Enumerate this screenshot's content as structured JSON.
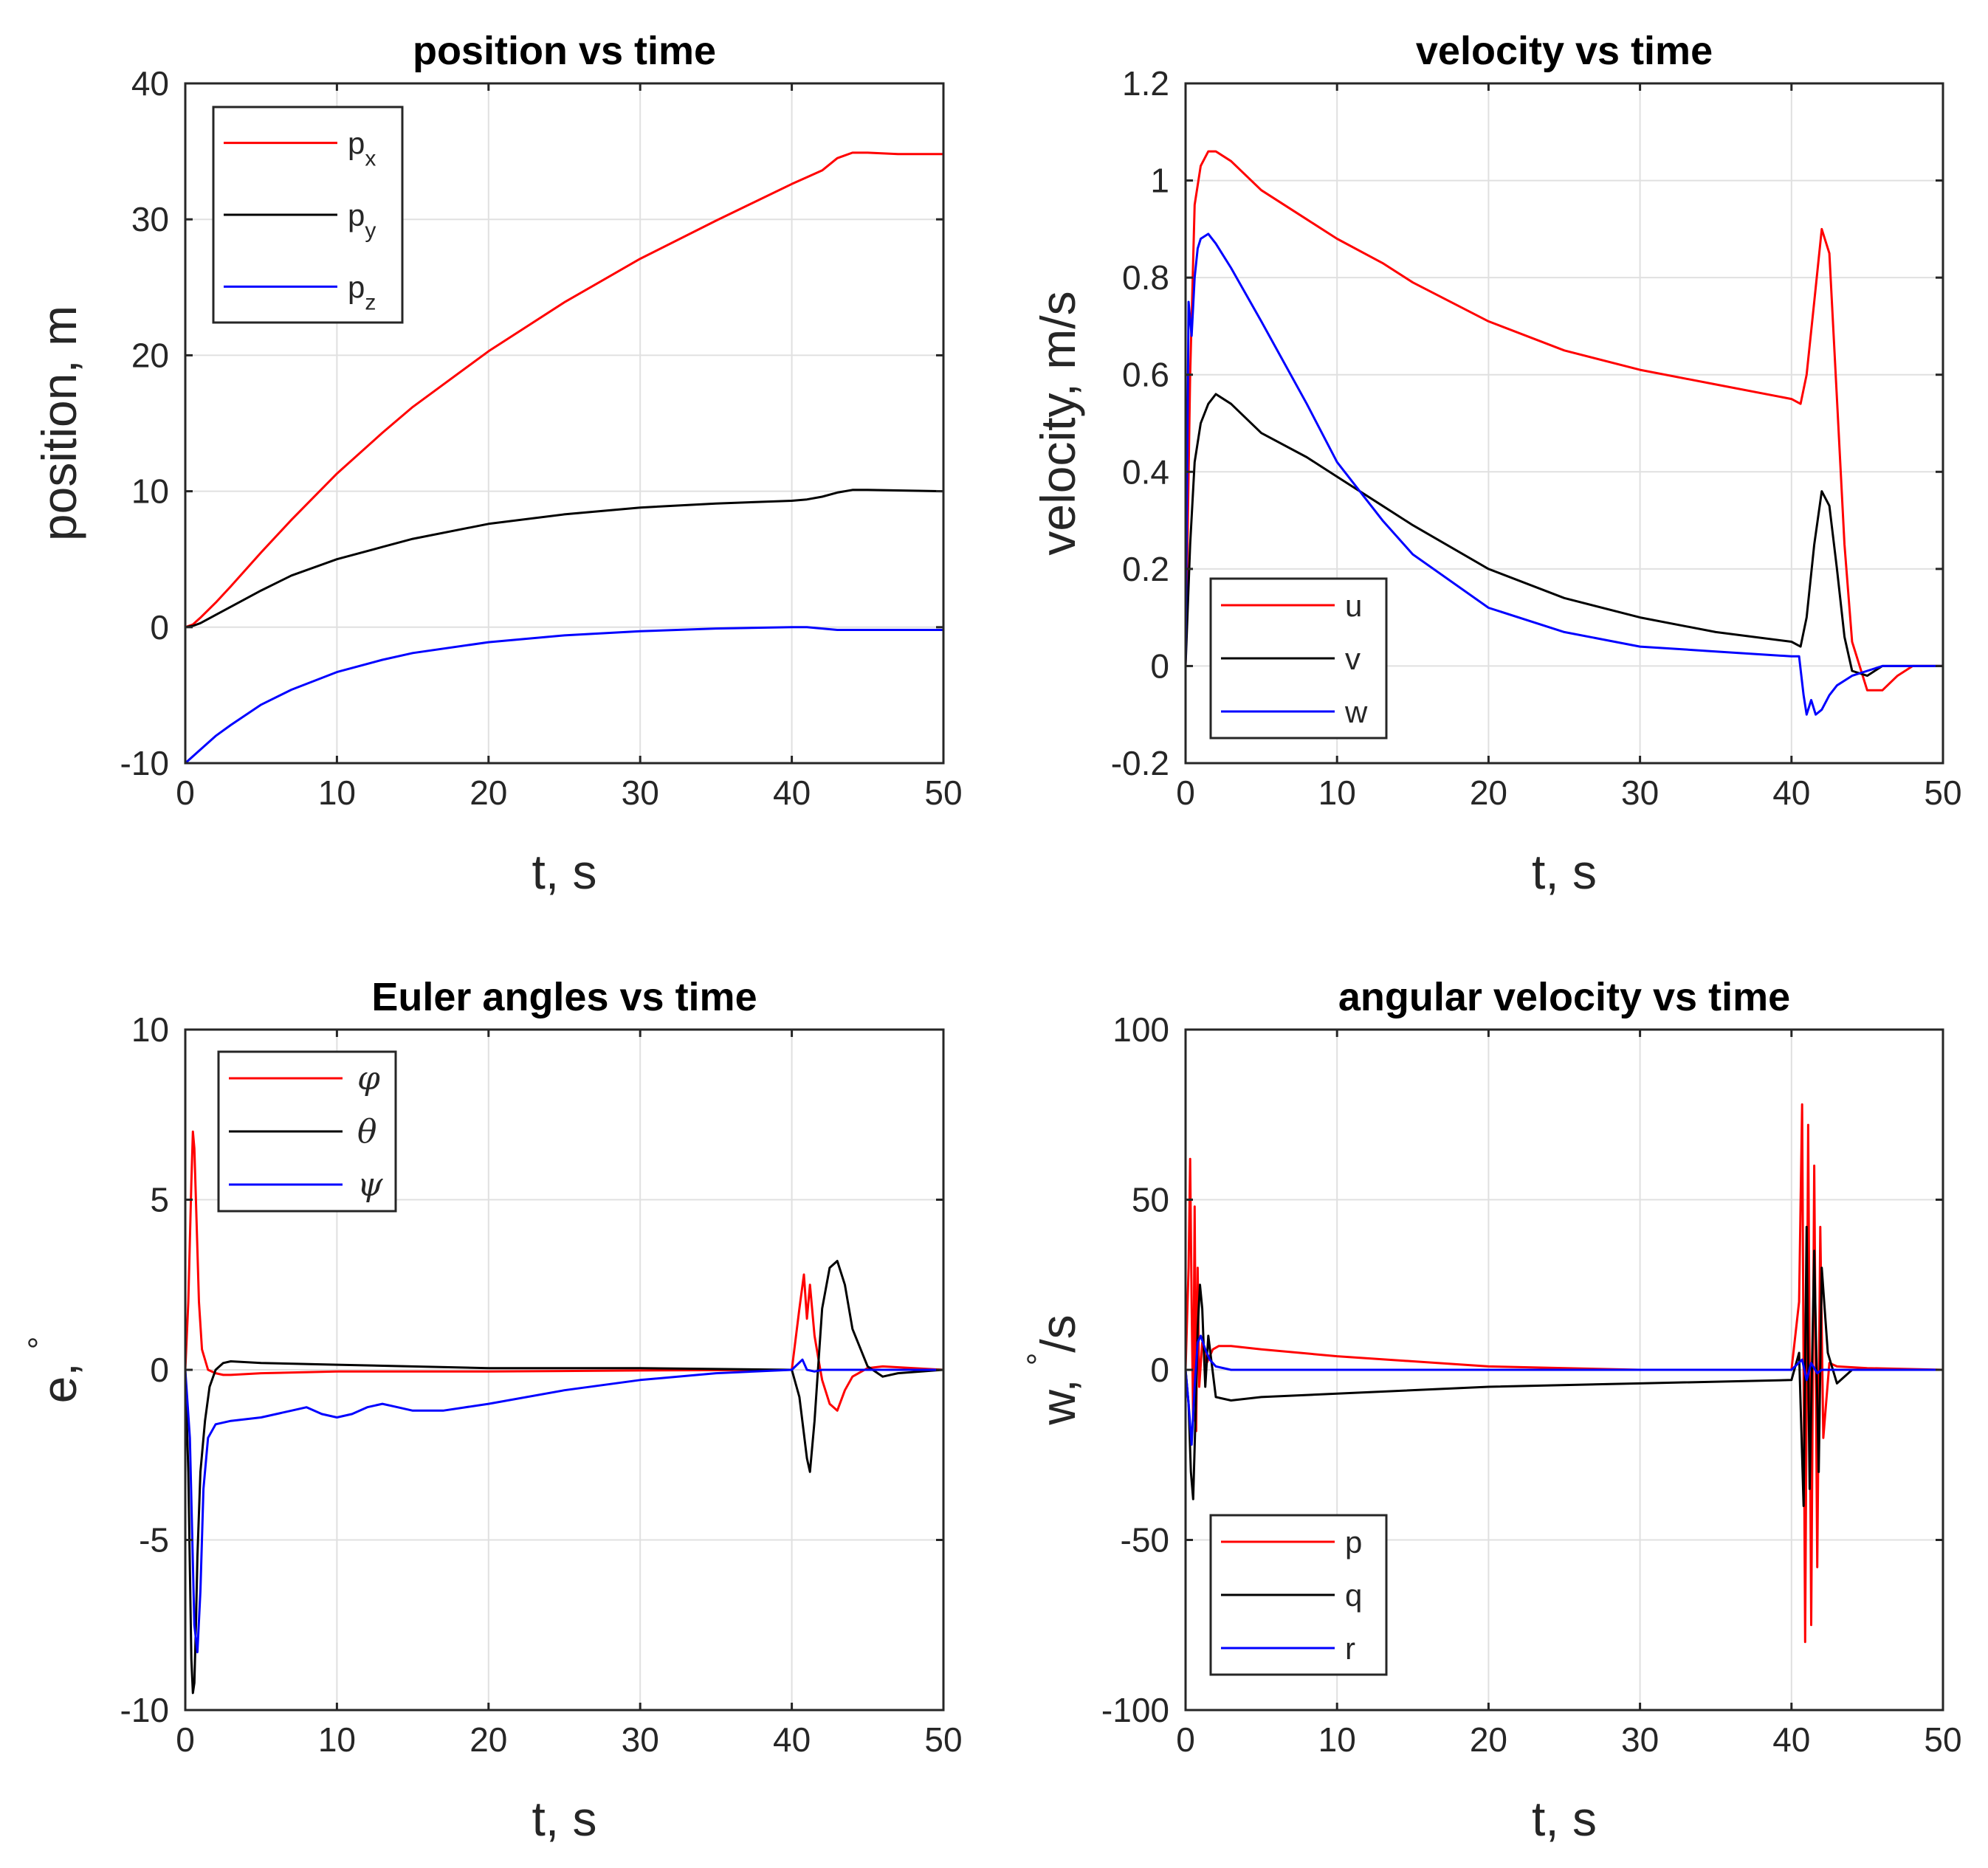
{
  "chart_data": [
    {
      "type": "line",
      "title": "position vs time",
      "xlabel": "t, s",
      "ylabel": "position, m",
      "xlim": [
        0,
        50
      ],
      "ylim": [
        -10,
        40
      ],
      "xticks": [
        "0",
        "10",
        "20",
        "30",
        "40",
        "50"
      ],
      "yticks": [
        "-10",
        "0",
        "10",
        "20",
        "30",
        "40"
      ],
      "grid": true,
      "legend_position": "top-left",
      "series": [
        {
          "name": "p",
          "sub": "x",
          "color": "#ff0000",
          "x": [
            0,
            0.5,
            1,
            2,
            3,
            5,
            7,
            10,
            13,
            15,
            20,
            25,
            30,
            35,
            40,
            41,
            42,
            43,
            44,
            45,
            47,
            50
          ],
          "y": [
            0,
            0.2,
            0.7,
            1.8,
            3.0,
            5.5,
            7.9,
            11.3,
            14.3,
            16.2,
            20.3,
            23.9,
            27.1,
            29.9,
            32.6,
            33.1,
            33.6,
            34.5,
            34.9,
            34.9,
            34.8,
            34.8
          ]
        },
        {
          "name": "p",
          "sub": "y",
          "color": "#000000",
          "x": [
            0,
            0.5,
            1,
            2,
            3,
            5,
            7,
            10,
            13,
            15,
            20,
            25,
            30,
            35,
            40,
            41,
            42,
            43,
            44,
            45,
            50
          ],
          "y": [
            0,
            0.1,
            0.3,
            0.9,
            1.5,
            2.7,
            3.8,
            5.0,
            5.9,
            6.5,
            7.6,
            8.3,
            8.8,
            9.1,
            9.3,
            9.4,
            9.6,
            9.9,
            10.1,
            10.1,
            10.0
          ]
        },
        {
          "name": "p",
          "sub": "z",
          "color": "#0000ff",
          "x": [
            0,
            1,
            2,
            3,
            5,
            7,
            10,
            13,
            15,
            20,
            25,
            30,
            35,
            40,
            41,
            42,
            43,
            45,
            50
          ],
          "y": [
            -10,
            -9.0,
            -8.0,
            -7.2,
            -5.7,
            -4.6,
            -3.3,
            -2.4,
            -1.9,
            -1.1,
            -0.6,
            -0.3,
            -0.1,
            0.0,
            0.0,
            -0.1,
            -0.2,
            -0.2,
            -0.2
          ]
        }
      ]
    },
    {
      "type": "line",
      "title": "velocity vs time",
      "xlabel": "t, s",
      "ylabel": "velocity, m/s",
      "xlim": [
        0,
        50
      ],
      "ylim": [
        -0.2,
        1.2
      ],
      "xticks": [
        "0",
        "10",
        "20",
        "30",
        "40",
        "50"
      ],
      "yticks": [
        "-0.2",
        "0",
        "0.2",
        "0.4",
        "0.6",
        "0.8",
        "1",
        "1.2"
      ],
      "grid": true,
      "legend_position": "bottom-left",
      "series": [
        {
          "name": "u",
          "color": "#ff0000",
          "x": [
            0,
            0.3,
            0.6,
            1,
            1.5,
            2,
            3,
            5,
            8,
            10,
            13,
            15,
            20,
            25,
            30,
            35,
            40,
            40.6,
            41,
            41.5,
            42,
            42.5,
            43,
            43.5,
            44,
            45,
            46,
            47,
            48,
            50
          ],
          "y": [
            0,
            0.6,
            0.95,
            1.03,
            1.06,
            1.06,
            1.04,
            0.98,
            0.92,
            0.88,
            0.83,
            0.79,
            0.71,
            0.65,
            0.61,
            0.58,
            0.55,
            0.54,
            0.6,
            0.75,
            0.9,
            0.85,
            0.55,
            0.25,
            0.05,
            -0.05,
            -0.05,
            -0.02,
            0.0,
            0.0
          ]
        },
        {
          "name": "v",
          "color": "#000000",
          "x": [
            0,
            0.3,
            0.6,
            1,
            1.5,
            2,
            3,
            5,
            8,
            10,
            13,
            15,
            20,
            25,
            30,
            35,
            40,
            40.6,
            41,
            41.5,
            42,
            42.5,
            43,
            43.5,
            44,
            45,
            46,
            47,
            50
          ],
          "y": [
            0,
            0.25,
            0.42,
            0.5,
            0.54,
            0.56,
            0.54,
            0.48,
            0.43,
            0.39,
            0.33,
            0.29,
            0.2,
            0.14,
            0.1,
            0.07,
            0.05,
            0.04,
            0.1,
            0.25,
            0.36,
            0.33,
            0.2,
            0.06,
            -0.01,
            -0.02,
            0.0,
            0.0,
            0.0
          ]
        },
        {
          "name": "w",
          "color": "#0000ff",
          "x": [
            0,
            0.2,
            0.4,
            0.6,
            0.8,
            1,
            1.5,
            2,
            3,
            5,
            8,
            10,
            13,
            15,
            20,
            25,
            30,
            35,
            40,
            40.5,
            40.8,
            41,
            41.3,
            41.6,
            42,
            42.5,
            43,
            44,
            45,
            46,
            50
          ],
          "y": [
            0,
            0.75,
            0.68,
            0.8,
            0.86,
            0.88,
            0.89,
            0.87,
            0.82,
            0.71,
            0.54,
            0.42,
            0.3,
            0.23,
            0.12,
            0.07,
            0.04,
            0.03,
            0.02,
            0.02,
            -0.06,
            -0.1,
            -0.07,
            -0.1,
            -0.09,
            -0.06,
            -0.04,
            -0.02,
            -0.01,
            0.0,
            0.0
          ]
        }
      ]
    },
    {
      "type": "line",
      "title": "Euler angles vs time",
      "xlabel": "t, s",
      "ylabel": "e,",
      "ylabel_sup": "°",
      "xlim": [
        0,
        50
      ],
      "ylim": [
        -10,
        10
      ],
      "xticks": [
        "0",
        "10",
        "20",
        "30",
        "40",
        "50"
      ],
      "yticks": [
        "-10",
        "-5",
        "0",
        "5",
        "10"
      ],
      "grid": true,
      "legend_position": "top-left",
      "series": [
        {
          "name": "φ",
          "symbol": "phi",
          "color": "#ff0000",
          "x": [
            0,
            0.2,
            0.4,
            0.5,
            0.6,
            0.7,
            0.9,
            1.1,
            1.5,
            2,
            2.5,
            3,
            5,
            10,
            20,
            30,
            40,
            40.5,
            40.8,
            41,
            41.2,
            41.5,
            41.8,
            42,
            42.5,
            43,
            43.5,
            44,
            45,
            46,
            50
          ],
          "y": [
            0,
            2,
            5.5,
            7.0,
            6.5,
            5.0,
            2.0,
            0.6,
            0.0,
            -0.1,
            -0.15,
            -0.15,
            -0.1,
            -0.05,
            -0.05,
            -0.02,
            0.0,
            1.8,
            2.8,
            1.5,
            2.5,
            1.0,
            0.2,
            -0.3,
            -1.0,
            -1.2,
            -0.6,
            -0.2,
            0.05,
            0.1,
            0.0
          ]
        },
        {
          "name": "θ",
          "symbol": "theta",
          "color": "#000000",
          "x": [
            0,
            0.2,
            0.4,
            0.5,
            0.6,
            0.7,
            0.8,
            1,
            1.3,
            1.6,
            2,
            2.5,
            3,
            5,
            10,
            20,
            30,
            40,
            40.5,
            41,
            41.2,
            41.5,
            41.8,
            42,
            42.5,
            43,
            43.5,
            44,
            45,
            46,
            47,
            50
          ],
          "y": [
            0,
            -3,
            -8.5,
            -9.5,
            -9.2,
            -7.5,
            -5.5,
            -3.0,
            -1.5,
            -0.5,
            0.0,
            0.2,
            0.25,
            0.2,
            0.15,
            0.05,
            0.05,
            0.0,
            -0.8,
            -2.6,
            -3.0,
            -1.5,
            0.5,
            1.8,
            3.0,
            3.2,
            2.5,
            1.2,
            0.1,
            -0.2,
            -0.1,
            0.0
          ]
        },
        {
          "name": "ψ",
          "symbol": "psi",
          "color": "#0000ff",
          "x": [
            0,
            0.3,
            0.6,
            0.8,
            1,
            1.2,
            1.5,
            2,
            3,
            5,
            7,
            8,
            9,
            10,
            11,
            12,
            13,
            14,
            15,
            17,
            20,
            25,
            30,
            35,
            40,
            40.7,
            41,
            41.5,
            42,
            45,
            50
          ],
          "y": [
            0,
            -2,
            -7.5,
            -8.3,
            -6.5,
            -3.5,
            -2.0,
            -1.6,
            -1.5,
            -1.4,
            -1.2,
            -1.1,
            -1.3,
            -1.4,
            -1.3,
            -1.1,
            -1.0,
            -1.1,
            -1.2,
            -1.2,
            -1.0,
            -0.6,
            -0.3,
            -0.1,
            0.0,
            0.3,
            0.0,
            -0.05,
            0.0,
            0.0,
            0.0
          ]
        }
      ]
    },
    {
      "type": "line",
      "title": "angular velocity vs time",
      "xlabel": "t, s",
      "ylabel": "w,",
      "ylabel_sup": "°",
      "ylabel_suffix": "/s",
      "xlim": [
        0,
        50
      ],
      "ylim": [
        -100,
        100
      ],
      "xticks": [
        "0",
        "10",
        "20",
        "30",
        "40",
        "50"
      ],
      "yticks": [
        "-100",
        "-50",
        "0",
        "50",
        "100"
      ],
      "grid": true,
      "legend_position": "bottom-left",
      "series": [
        {
          "name": "p",
          "color": "#ff0000",
          "x": [
            0,
            0.2,
            0.3,
            0.4,
            0.5,
            0.6,
            0.7,
            0.8,
            0.9,
            1.1,
            1.4,
            1.8,
            2.2,
            3,
            5,
            10,
            20,
            30,
            40,
            40.5,
            40.7,
            40.9,
            41.1,
            41.3,
            41.5,
            41.7,
            41.9,
            42.1,
            42.5,
            43,
            45,
            50
          ],
          "y": [
            0,
            30,
            62,
            20,
            -15,
            48,
            -18,
            30,
            -5,
            8,
            2,
            6,
            7,
            7,
            6,
            4,
            1,
            0,
            0,
            20,
            78,
            -80,
            72,
            -75,
            60,
            -58,
            42,
            -20,
            2,
            1,
            0.5,
            0
          ]
        },
        {
          "name": "q",
          "color": "#000000",
          "x": [
            0,
            0.2,
            0.35,
            0.5,
            0.65,
            0.8,
            0.95,
            1.1,
            1.3,
            1.5,
            2,
            3,
            5,
            10,
            20,
            30,
            40,
            40.5,
            40.8,
            41,
            41.2,
            41.5,
            41.8,
            42,
            42.4,
            43,
            43.5,
            44,
            45,
            50
          ],
          "y": [
            0,
            -10,
            -30,
            -38,
            -15,
            12,
            25,
            18,
            -5,
            10,
            -8,
            -9,
            -8,
            -7,
            -5,
            -4,
            -3,
            5,
            -40,
            42,
            -35,
            35,
            -30,
            30,
            5,
            -4,
            -2,
            0,
            0,
            0
          ]
        },
        {
          "name": "r",
          "color": "#0000ff",
          "x": [
            0,
            0.2,
            0.4,
            0.6,
            0.8,
            1,
            1.3,
            1.6,
            2,
            3,
            5,
            10,
            20,
            30,
            40,
            40.7,
            41,
            41.3,
            41.7,
            42,
            43,
            45,
            50
          ],
          "y": [
            0,
            -10,
            -22,
            -5,
            8,
            10,
            6,
            3,
            1,
            0,
            0,
            0,
            0,
            0,
            0,
            3,
            -3,
            2,
            -1,
            0,
            0,
            0,
            0
          ]
        }
      ]
    }
  ]
}
